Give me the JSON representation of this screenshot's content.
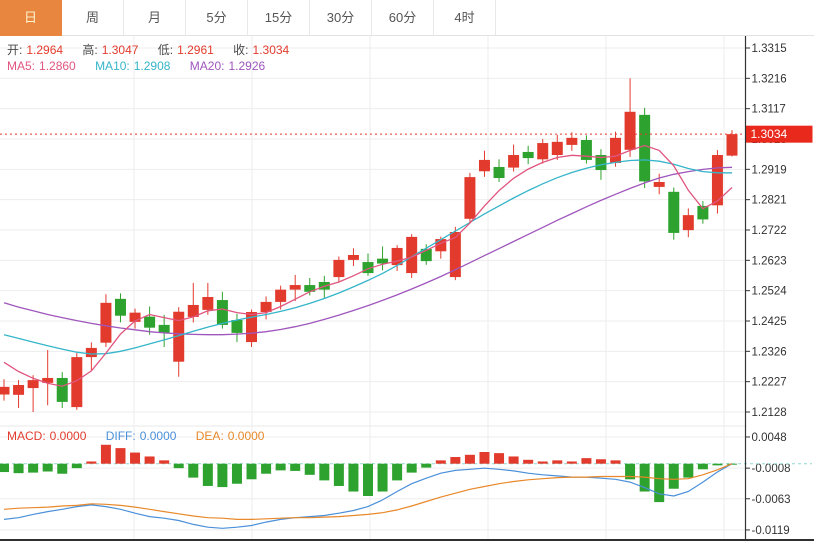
{
  "toolbar": {
    "tabs": [
      {
        "id": "day",
        "label": "日",
        "active": true
      },
      {
        "id": "week",
        "label": "周",
        "active": false
      },
      {
        "id": "month",
        "label": "月",
        "active": false
      },
      {
        "id": "5min",
        "label": "5分",
        "active": false
      },
      {
        "id": "15min",
        "label": "15分",
        "active": false
      },
      {
        "id": "30min",
        "label": "30分",
        "active": false
      },
      {
        "id": "60min",
        "label": "60分",
        "active": false
      },
      {
        "id": "4hour",
        "label": "4时",
        "active": false
      }
    ]
  },
  "legend": {
    "open_label": "开:",
    "open": "1.2964",
    "high_label": "高:",
    "high": "1.3047",
    "low_label": "低:",
    "low": "1.2961",
    "close_label": "收:",
    "close": "1.3034",
    "ma5_label": "MA5:",
    "ma5": "1.2860",
    "ma10_label": "MA10:",
    "ma10": "1.2908",
    "ma20_label": "MA20:",
    "ma20": "1.2926"
  },
  "macd_legend": {
    "macd_label": "MACD:",
    "macd": "0.0000",
    "diff_label": "DIFF:",
    "diff": "0.0000",
    "dea_label": "DEA:",
    "dea": "0.0000"
  },
  "colors": {
    "up": "#e23b2e",
    "down": "#2ea22e",
    "ma5": "#e0557f",
    "ma10": "#35b5c9",
    "ma20": "#9f56bd",
    "diff": "#4a90d9",
    "dea": "#e8882a",
    "accent": "#e8853e",
    "price_badge": "#e8291c",
    "grid": "#ededed",
    "axis_line": "#333333",
    "axis_text": "#333333",
    "current_price_line": "#e8392c",
    "zero_dash": "#8fd8d2"
  },
  "chart_data": {
    "type": "candlestick",
    "title": "",
    "current_price": "1.3034",
    "price_ticks": [
      "1.3315",
      "1.3216",
      "1.3117",
      "1.3018",
      "1.2919",
      "1.2821",
      "1.2722",
      "1.2623",
      "1.2524",
      "1.2425",
      "1.2326",
      "1.2227",
      "1.2128"
    ],
    "price_range": [
      1.2128,
      1.3315
    ],
    "candles": [
      [
        1.2185,
        1.2235,
        1.2165,
        1.221
      ],
      [
        1.2184,
        1.2232,
        1.2141,
        1.2216
      ],
      [
        1.2206,
        1.2248,
        1.2128,
        1.2232
      ],
      [
        1.2223,
        1.233,
        1.215,
        1.2239
      ],
      [
        1.2239,
        1.2258,
        1.2141,
        1.2161
      ],
      [
        1.2144,
        1.232,
        1.2135,
        1.2307
      ],
      [
        1.2307,
        1.2355,
        1.2264,
        1.2337
      ],
      [
        1.2354,
        1.2512,
        1.234,
        1.2484
      ],
      [
        1.2497,
        1.2515,
        1.242,
        1.2442
      ],
      [
        1.2422,
        1.2465,
        1.24,
        1.2452
      ],
      [
        1.2439,
        1.2472,
        1.238,
        1.2403
      ],
      [
        1.2412,
        1.2445,
        1.234,
        1.2386
      ],
      [
        1.2292,
        1.247,
        1.2243,
        1.2455
      ],
      [
        1.2438,
        1.2549,
        1.242,
        1.2477
      ],
      [
        1.2461,
        1.2549,
        1.2445,
        1.2503
      ],
      [
        1.2493,
        1.252,
        1.24,
        1.2412
      ],
      [
        1.2428,
        1.2448,
        1.2356,
        1.2386
      ],
      [
        1.2356,
        1.2462,
        1.234,
        1.2454
      ],
      [
        1.2454,
        1.2505,
        1.243,
        1.2487
      ],
      [
        1.2487,
        1.254,
        1.2462,
        1.2527
      ],
      [
        1.2527,
        1.2575,
        1.249,
        1.2542
      ],
      [
        1.2542,
        1.2565,
        1.2508,
        1.252
      ],
      [
        1.2552,
        1.2572,
        1.25,
        1.2527
      ],
      [
        1.2568,
        1.2635,
        1.255,
        1.2624
      ],
      [
        1.2624,
        1.2662,
        1.2604,
        1.264
      ],
      [
        1.2617,
        1.2645,
        1.2572,
        1.2581
      ],
      [
        1.2628,
        1.2668,
        1.259,
        1.2612
      ],
      [
        1.2607,
        1.2672,
        1.2588,
        1.2663
      ],
      [
        1.2581,
        1.2708,
        1.2565,
        1.2699
      ],
      [
        1.266,
        1.2675,
        1.2608,
        1.262
      ],
      [
        1.2652,
        1.27,
        1.2628,
        1.2692
      ],
      [
        1.2568,
        1.2732,
        1.2558,
        1.2715
      ],
      [
        1.2758,
        1.2908,
        1.2742,
        1.2894
      ],
      [
        1.2913,
        1.298,
        1.2895,
        1.295
      ],
      [
        1.2927,
        1.2952,
        1.2878,
        1.2891
      ],
      [
        1.2925,
        1.3,
        1.2912,
        1.2966
      ],
      [
        1.2976,
        1.2996,
        1.2936,
        1.2956
      ],
      [
        1.2952,
        1.3018,
        1.2938,
        1.3005
      ],
      [
        1.2966,
        1.3032,
        1.295,
        1.3009
      ],
      [
        1.2999,
        1.304,
        1.298,
        1.3022
      ],
      [
        1.3015,
        1.303,
        1.2938,
        1.295
      ],
      [
        1.2966,
        1.2985,
        1.2885,
        1.2917
      ],
      [
        1.294,
        1.3042,
        1.2928,
        1.3022
      ],
      [
        1.2983,
        1.3216,
        1.296,
        1.3107
      ],
      [
        1.3097,
        1.312,
        1.2858,
        1.288
      ],
      [
        1.2862,
        1.2905,
        1.2838,
        1.2878
      ],
      [
        1.2846,
        1.286,
        1.269,
        1.2712
      ],
      [
        1.2721,
        1.2792,
        1.2698,
        1.277
      ],
      [
        1.28,
        1.2816,
        1.2742,
        1.2756
      ],
      [
        1.2802,
        1.2982,
        1.2775,
        1.2966
      ],
      [
        1.2964,
        1.3047,
        1.2961,
        1.3034
      ]
    ],
    "ma5": [
      1.229,
      1.226,
      1.2238,
      1.2222,
      1.2212,
      1.223,
      1.2262,
      1.232,
      1.2382,
      1.2425,
      1.2446,
      1.2436,
      1.2426,
      1.2438,
      1.2458,
      1.2464,
      1.2452,
      1.2446,
      1.2452,
      1.2472,
      1.2496,
      1.252,
      1.2538,
      1.2552,
      1.2572,
      1.2595,
      1.261,
      1.262,
      1.2633,
      1.2655,
      1.2678,
      1.2697,
      1.2744,
      1.28,
      1.285,
      1.289,
      1.292,
      1.2942,
      1.2958,
      1.2965,
      1.2962,
      1.2958,
      1.2962,
      1.2981,
      1.2997,
      1.2981,
      1.2931,
      1.2851,
      1.2791,
      1.2816,
      1.286
    ],
    "ma10": [
      1.238,
      1.2368,
      1.2356,
      1.2344,
      1.2333,
      1.2323,
      1.2317,
      1.2318,
      1.2326,
      1.2337,
      1.235,
      1.2363,
      1.2377,
      1.2391,
      1.2405,
      1.2417,
      1.2428,
      1.2437,
      1.2446,
      1.2456,
      1.2468,
      1.2482,
      1.2498,
      1.2516,
      1.2536,
      1.2557,
      1.258,
      1.2606,
      1.2634,
      1.2662,
      1.269,
      1.2718,
      1.2746,
      1.2774,
      1.28,
      1.2826,
      1.285,
      1.2872,
      1.2892,
      1.2909,
      1.2923,
      1.2934,
      1.2942,
      1.2948,
      1.295,
      1.2946,
      1.2936,
      1.2922,
      1.2912,
      1.2908,
      1.2908
    ],
    "ma20": [
      1.2484,
      1.247,
      1.2458,
      1.2446,
      1.2436,
      1.2426,
      1.2417,
      1.2409,
      1.2402,
      1.2396,
      1.239,
      1.2386,
      1.2383,
      1.2381,
      1.238,
      1.238,
      1.2382,
      1.2385,
      1.239,
      1.2397,
      1.2406,
      1.2417,
      1.243,
      1.2444,
      1.2459,
      1.2475,
      1.2492,
      1.251,
      1.2529,
      1.2549,
      1.257,
      1.2592,
      1.2615,
      1.2638,
      1.2661,
      1.2684,
      1.2707,
      1.273,
      1.2753,
      1.2775,
      1.2797,
      1.2818,
      1.2838,
      1.2857,
      1.2875,
      1.2891,
      1.2903,
      1.2912,
      1.2919,
      1.2924,
      1.2926
    ],
    "macd": {
      "ticks": [
        "0.0048",
        "-0.0008",
        "-0.0063",
        "-0.0119"
      ],
      "tick_values": [
        0.0048,
        -0.0008,
        -0.0063,
        -0.0119
      ],
      "bars": [
        -0.0015,
        -0.0017,
        -0.0016,
        -0.0014,
        -0.0018,
        -0.0008,
        0.0004,
        0.0034,
        0.0028,
        0.002,
        0.0013,
        0.0006,
        -0.0008,
        -0.0025,
        -0.004,
        -0.0042,
        -0.0036,
        -0.0028,
        -0.0018,
        -0.0012,
        -0.0013,
        -0.002,
        -0.003,
        -0.004,
        -0.005,
        -0.0058,
        -0.005,
        -0.003,
        -0.0016,
        -0.0007,
        0.0006,
        0.0012,
        0.0016,
        0.0021,
        0.0019,
        0.0013,
        0.0007,
        0.0004,
        0.0006,
        0.0004,
        0.001,
        0.0008,
        0.0006,
        -0.0028,
        -0.005,
        -0.0069,
        -0.0045,
        -0.0025,
        -0.001,
        -0.0003,
        -0.0001
      ],
      "diff": [
        -0.01,
        -0.0097,
        -0.0091,
        -0.0086,
        -0.0082,
        -0.0077,
        -0.0074,
        -0.0077,
        -0.0082,
        -0.0089,
        -0.0095,
        -0.0098,
        -0.0102,
        -0.0109,
        -0.0114,
        -0.0116,
        -0.0114,
        -0.0111,
        -0.0105,
        -0.01,
        -0.0097,
        -0.0095,
        -0.0093,
        -0.0089,
        -0.0084,
        -0.0077,
        -0.0065,
        -0.005,
        -0.0036,
        -0.0026,
        -0.0017,
        -0.0012,
        -0.001,
        -0.0008,
        -0.001,
        -0.0013,
        -0.0017,
        -0.002,
        -0.0022,
        -0.0024,
        -0.0024,
        -0.0026,
        -0.0028,
        -0.0033,
        -0.0043,
        -0.0054,
        -0.0058,
        -0.005,
        -0.0033,
        -0.0015,
        0.0
      ],
      "dea": [
        -0.0082,
        -0.008,
        -0.0079,
        -0.0078,
        -0.0076,
        -0.0075,
        -0.0072,
        -0.0073,
        -0.0075,
        -0.0078,
        -0.0082,
        -0.0086,
        -0.009,
        -0.0094,
        -0.0097,
        -0.0098,
        -0.01,
        -0.01,
        -0.0099,
        -0.0098,
        -0.0097,
        -0.0097,
        -0.0096,
        -0.0095,
        -0.0093,
        -0.0091,
        -0.0088,
        -0.0083,
        -0.0076,
        -0.0068,
        -0.006,
        -0.0053,
        -0.0046,
        -0.0041,
        -0.0036,
        -0.0032,
        -0.0029,
        -0.0027,
        -0.0025,
        -0.0024,
        -0.0024,
        -0.0023,
        -0.0023,
        -0.0023,
        -0.0024,
        -0.0027,
        -0.0028,
        -0.0027,
        -0.002,
        -0.0011,
        0.0
      ]
    }
  }
}
